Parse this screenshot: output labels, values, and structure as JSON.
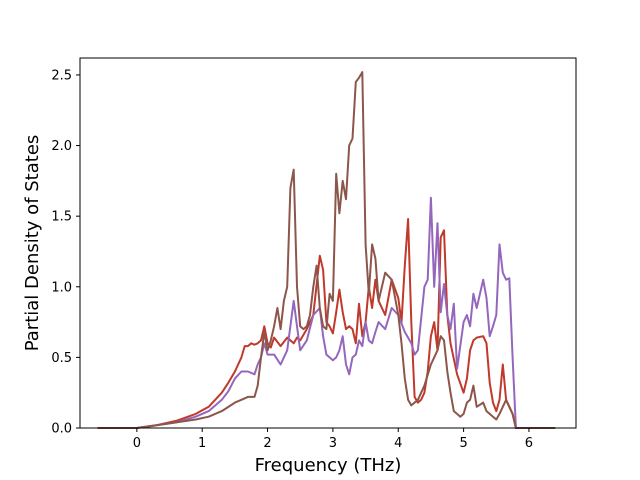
{
  "chart_data": {
    "type": "line",
    "title": "",
    "xlabel": "Frequency (THz)",
    "ylabel": "Partial Density of States",
    "xlim": [
      -0.87,
      6.72
    ],
    "ylim": [
      0,
      2.62
    ],
    "xticks": [
      0,
      1,
      2,
      3,
      4,
      5,
      6
    ],
    "yticks": [
      0.0,
      0.5,
      1.0,
      1.5,
      2.0,
      2.5
    ],
    "xtick_labels": [
      "0",
      "1",
      "2",
      "3",
      "4",
      "5",
      "6"
    ],
    "ytick_labels": [
      "0.0",
      "0.5",
      "1.0",
      "1.5",
      "2.0",
      "2.5"
    ],
    "grid": false,
    "legend": "none",
    "series": [
      {
        "color": "#c0392b",
        "x": [
          -0.6,
          0.0,
          0.3,
          0.6,
          0.9,
          1.1,
          1.3,
          1.4,
          1.5,
          1.6,
          1.65,
          1.7,
          1.75,
          1.8,
          1.85,
          1.9,
          1.95,
          2.0,
          2.05,
          2.1,
          2.2,
          2.3,
          2.4,
          2.45,
          2.5,
          2.6,
          2.7,
          2.8,
          2.85,
          2.9,
          2.95,
          3.0,
          3.05,
          3.1,
          3.15,
          3.2,
          3.25,
          3.3,
          3.35,
          3.4,
          3.45,
          3.5,
          3.55,
          3.6,
          3.65,
          3.7,
          3.8,
          3.9,
          4.0,
          4.05,
          4.1,
          4.15,
          4.2,
          4.25,
          4.3,
          4.35,
          4.4,
          4.45,
          4.5,
          4.55,
          4.6,
          4.65,
          4.7,
          4.75,
          4.8,
          4.9,
          5.0,
          5.05,
          5.1,
          5.15,
          5.2,
          5.3,
          5.35,
          5.4,
          5.45,
          5.5,
          5.55,
          5.6,
          5.65,
          5.7,
          5.75,
          5.8,
          6.4
        ],
        "y": [
          0.0,
          0.0,
          0.02,
          0.05,
          0.1,
          0.15,
          0.25,
          0.32,
          0.4,
          0.5,
          0.58,
          0.58,
          0.6,
          0.59,
          0.6,
          0.62,
          0.72,
          0.6,
          0.57,
          0.64,
          0.58,
          0.64,
          0.6,
          0.64,
          0.62,
          0.7,
          0.8,
          1.22,
          1.12,
          0.75,
          0.72,
          0.67,
          0.82,
          0.98,
          0.82,
          0.7,
          0.72,
          0.7,
          0.6,
          0.88,
          0.65,
          0.75,
          1.0,
          0.85,
          1.05,
          0.9,
          0.8,
          1.05,
          0.92,
          0.75,
          1.15,
          1.48,
          0.75,
          0.22,
          0.18,
          0.2,
          0.25,
          0.4,
          0.65,
          0.75,
          0.55,
          1.35,
          1.4,
          0.8,
          0.6,
          0.38,
          0.25,
          0.35,
          0.55,
          0.62,
          0.64,
          0.65,
          0.6,
          0.32,
          0.18,
          0.12,
          0.2,
          0.45,
          0.2,
          0.15,
          0.1,
          0.0,
          0.0
        ]
      },
      {
        "color": "#9467bd",
        "x": [
          -0.6,
          0.0,
          0.3,
          0.6,
          0.9,
          1.1,
          1.3,
          1.4,
          1.5,
          1.6,
          1.7,
          1.8,
          1.85,
          1.9,
          1.95,
          2.0,
          2.05,
          2.1,
          2.2,
          2.3,
          2.4,
          2.45,
          2.5,
          2.6,
          2.7,
          2.8,
          2.85,
          2.9,
          2.95,
          3.0,
          3.05,
          3.1,
          3.15,
          3.2,
          3.25,
          3.3,
          3.35,
          3.4,
          3.45,
          3.5,
          3.55,
          3.6,
          3.65,
          3.7,
          3.8,
          3.9,
          4.0,
          4.1,
          4.2,
          4.25,
          4.3,
          4.4,
          4.45,
          4.5,
          4.55,
          4.6,
          4.65,
          4.7,
          4.75,
          4.8,
          4.85,
          4.9,
          5.0,
          5.05,
          5.1,
          5.15,
          5.2,
          5.3,
          5.35,
          5.4,
          5.45,
          5.5,
          5.55,
          5.6,
          5.65,
          5.7,
          5.75,
          5.8,
          6.4
        ],
        "y": [
          0.0,
          0.0,
          0.02,
          0.04,
          0.08,
          0.12,
          0.2,
          0.26,
          0.35,
          0.4,
          0.4,
          0.38,
          0.45,
          0.5,
          0.6,
          0.52,
          0.52,
          0.52,
          0.45,
          0.55,
          0.9,
          0.72,
          0.55,
          0.62,
          0.8,
          0.85,
          0.65,
          0.52,
          0.5,
          0.48,
          0.5,
          0.55,
          0.65,
          0.45,
          0.38,
          0.5,
          0.52,
          0.62,
          0.58,
          0.75,
          0.62,
          0.6,
          0.68,
          0.75,
          0.7,
          0.85,
          0.8,
          0.68,
          0.6,
          0.52,
          0.55,
          1.0,
          1.05,
          1.63,
          1.0,
          1.45,
          0.82,
          1.02,
          0.8,
          0.7,
          0.88,
          0.42,
          0.75,
          0.8,
          0.72,
          0.95,
          0.85,
          1.05,
          0.92,
          0.65,
          0.72,
          0.8,
          1.3,
          1.1,
          1.05,
          1.06,
          0.5,
          0.0,
          0.0
        ]
      },
      {
        "color": "#8c564b",
        "x": [
          -0.6,
          0.0,
          0.3,
          0.6,
          0.9,
          1.1,
          1.3,
          1.5,
          1.6,
          1.7,
          1.8,
          1.85,
          1.9,
          1.95,
          2.0,
          2.05,
          2.1,
          2.15,
          2.2,
          2.25,
          2.3,
          2.35,
          2.4,
          2.45,
          2.5,
          2.55,
          2.6,
          2.65,
          2.7,
          2.75,
          2.8,
          2.85,
          2.9,
          2.95,
          3.0,
          3.05,
          3.1,
          3.15,
          3.2,
          3.25,
          3.3,
          3.35,
          3.4,
          3.45,
          3.5,
          3.55,
          3.6,
          3.65,
          3.7,
          3.8,
          3.9,
          4.0,
          4.05,
          4.1,
          4.15,
          4.2,
          4.3,
          4.4,
          4.5,
          4.55,
          4.6,
          4.65,
          4.7,
          4.75,
          4.8,
          4.85,
          4.9,
          4.95,
          5.0,
          5.05,
          5.1,
          5.15,
          5.2,
          5.3,
          5.35,
          5.4,
          5.45,
          5.5,
          5.55,
          5.6,
          5.65,
          5.7,
          5.75,
          5.8,
          6.4
        ],
        "y": [
          0.0,
          0.0,
          0.02,
          0.04,
          0.06,
          0.08,
          0.12,
          0.18,
          0.2,
          0.22,
          0.22,
          0.3,
          0.5,
          0.68,
          0.55,
          0.62,
          0.72,
          0.85,
          0.7,
          0.9,
          1.0,
          1.7,
          1.83,
          1.0,
          0.72,
          0.7,
          0.72,
          0.8,
          1.0,
          1.15,
          0.85,
          0.72,
          0.7,
          0.95,
          0.9,
          1.8,
          1.52,
          1.75,
          1.62,
          2.0,
          2.05,
          2.45,
          2.48,
          2.52,
          1.3,
          0.95,
          1.3,
          1.2,
          0.9,
          1.1,
          1.05,
          0.8,
          0.6,
          0.35,
          0.2,
          0.16,
          0.2,
          0.3,
          0.45,
          0.5,
          0.55,
          0.65,
          0.62,
          0.4,
          0.25,
          0.12,
          0.1,
          0.08,
          0.1,
          0.18,
          0.2,
          0.3,
          0.15,
          0.18,
          0.12,
          0.1,
          0.08,
          0.06,
          0.1,
          0.15,
          0.2,
          0.15,
          0.1,
          0.0,
          0.0
        ]
      }
    ]
  }
}
